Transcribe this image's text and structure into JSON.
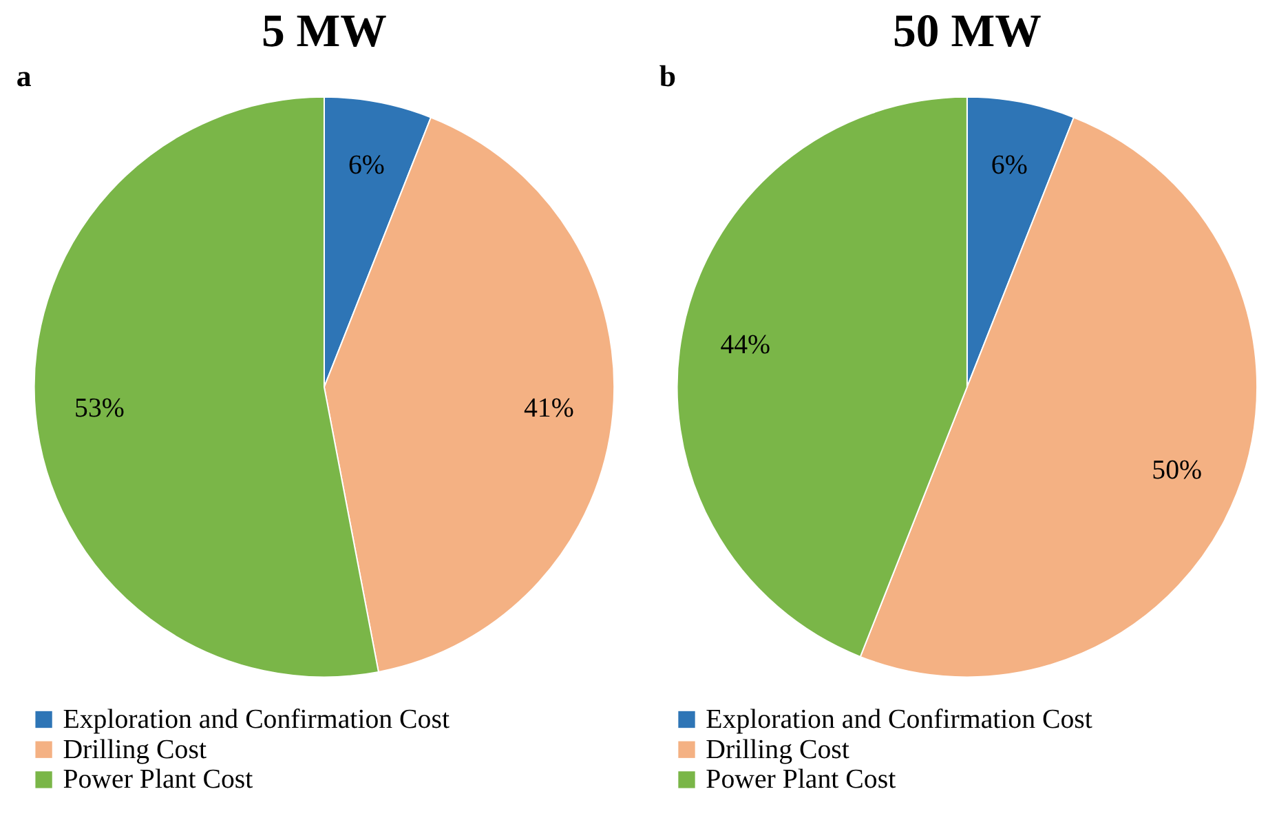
{
  "chart_data": [
    {
      "type": "pie",
      "title": "5 MW",
      "annotations": [
        "a"
      ],
      "categories": [
        "Exploration and Confirmation Cost",
        "Drilling Cost",
        "Power Plant Cost"
      ],
      "values": [
        6,
        41,
        53
      ],
      "value_labels": [
        "6%",
        "41%",
        "53%"
      ],
      "colors": [
        "#2e75b6",
        "#f4b183",
        "#7ab648"
      ],
      "legend": "bottom"
    },
    {
      "type": "pie",
      "title": "50 MW",
      "annotations": [
        "b"
      ],
      "categories": [
        "Exploration and Confirmation Cost",
        "Drilling Cost",
        "Power Plant Cost"
      ],
      "values": [
        6,
        50,
        44
      ],
      "value_labels": [
        "6%",
        "50%",
        "44%"
      ],
      "colors": [
        "#2e75b6",
        "#f4b183",
        "#7ab648"
      ],
      "legend": "bottom"
    }
  ]
}
